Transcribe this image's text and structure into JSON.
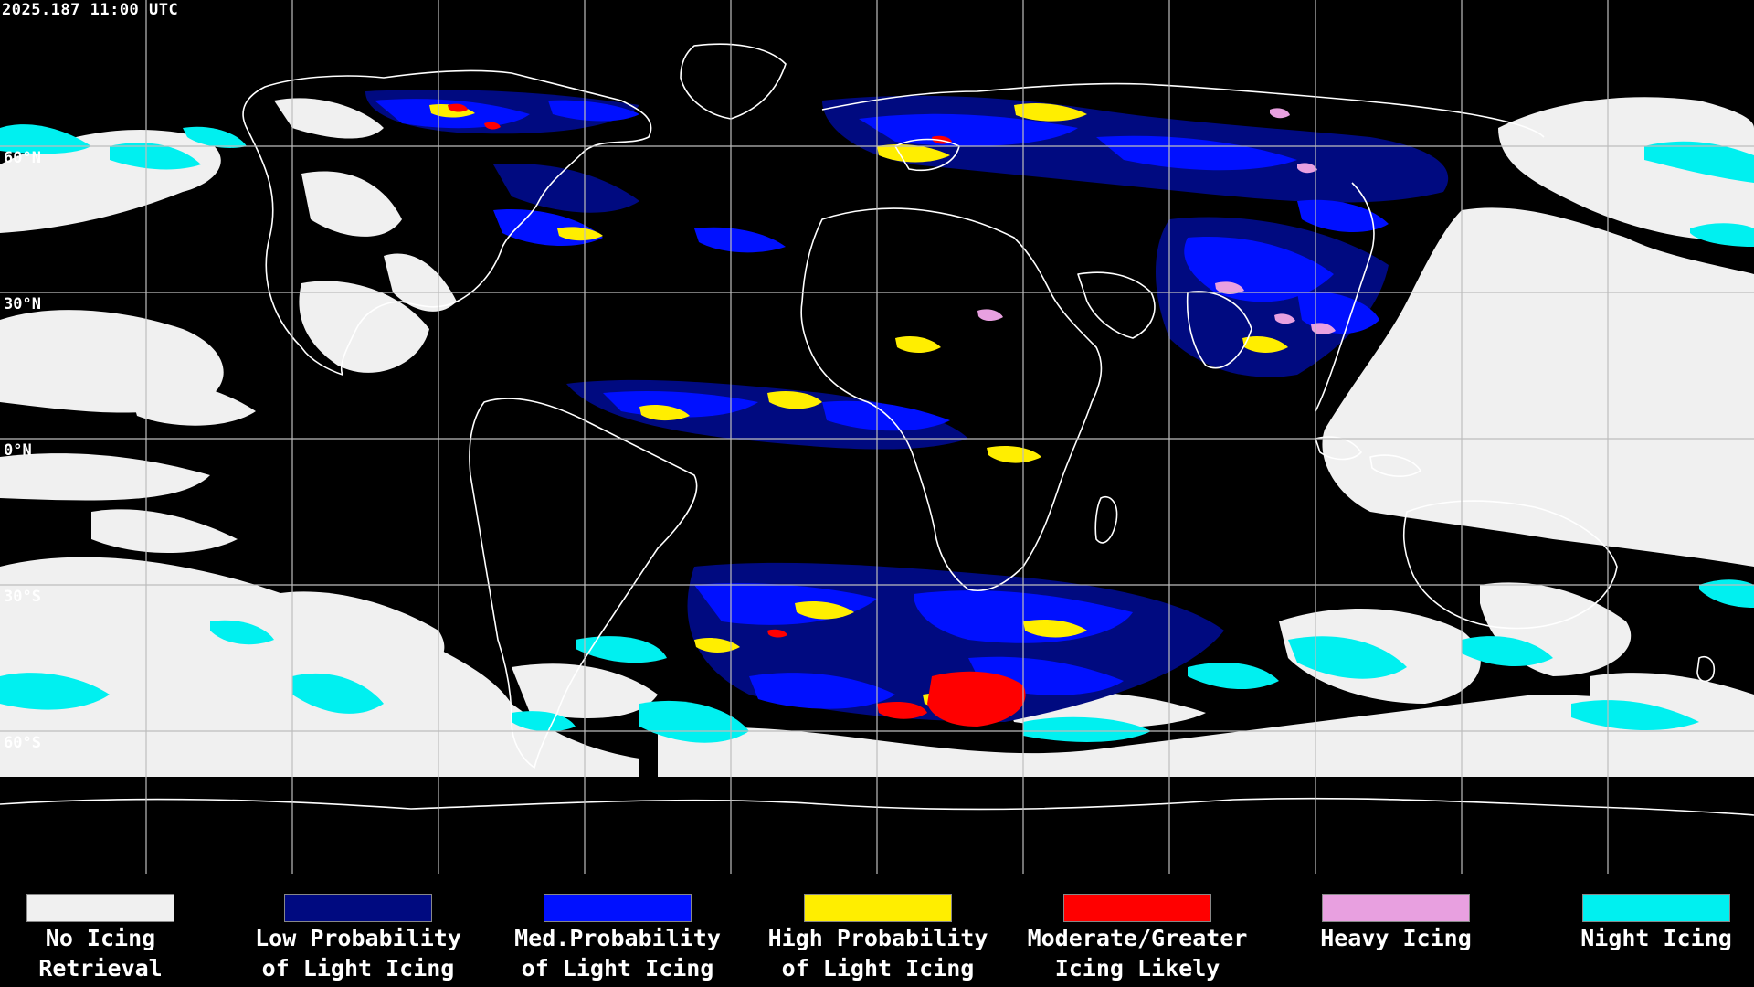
{
  "timestamp": "2025.187 11:00 UTC",
  "latitude_labels": [
    "60°N",
    "30°N",
    "0°N",
    "30°S",
    "60°S"
  ],
  "colors": {
    "background": "#000000",
    "grid": "#bdbdbd",
    "coast": "#ffffff",
    "no_icing": "#f0f0f0",
    "low": "#000a80",
    "med": "#0010ff",
    "high": "#ffee00",
    "moderate": "#ff0000",
    "heavy": "#e8a0e0",
    "night": "#00f0f0"
  },
  "legend": [
    {
      "line1": "No Icing",
      "line2": "Retrieval",
      "color": "#f0f0f0"
    },
    {
      "line1": "Low Probability",
      "line2": "of Light Icing",
      "color": "#000a80"
    },
    {
      "line1": "Med.Probability",
      "line2": "of Light Icing",
      "color": "#0010ff"
    },
    {
      "line1": "High Probability",
      "line2": "of Light Icing",
      "color": "#ffee00"
    },
    {
      "line1": "Moderate/Greater",
      "line2": "Icing Likely",
      "color": "#ff0000"
    },
    {
      "line1": "Heavy Icing",
      "line2": "",
      "color": "#e8a0e0"
    },
    {
      "line1": "Night Icing",
      "line2": "",
      "color": "#00f0f0"
    }
  ]
}
